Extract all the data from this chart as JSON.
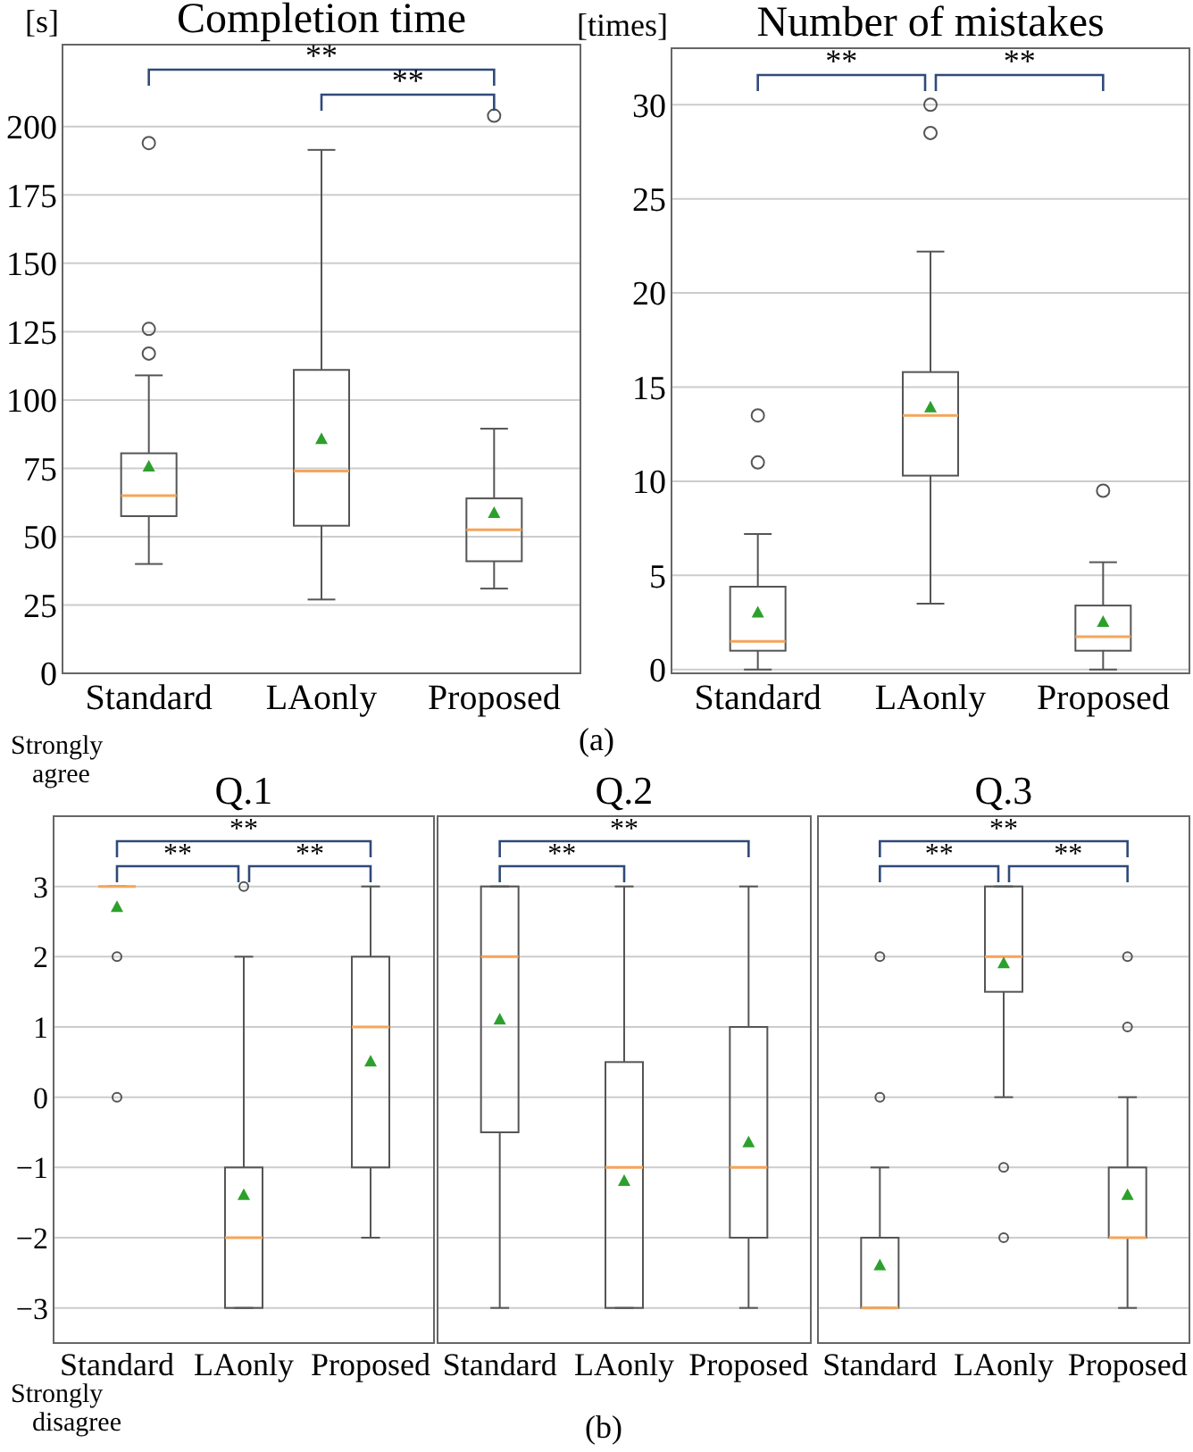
{
  "chart_data": [
    {
      "type": "box",
      "title": "Completion time",
      "ylabel": "[s]",
      "categories": [
        "Standard",
        "LAonly",
        "Proposed"
      ],
      "ylim": [
        0,
        230
      ],
      "yticks": [
        0,
        25,
        50,
        75,
        100,
        125,
        150,
        175,
        200
      ],
      "grid": "y",
      "annotations": [
        "**",
        "**"
      ],
      "boxes": [
        {
          "low": 40,
          "q1": 57.5,
          "median": 65,
          "q3": 80.5,
          "high": 109,
          "mean": 75.5,
          "outliers": [
            117,
            126,
            194
          ]
        },
        {
          "low": 27,
          "q1": 54,
          "median": 74,
          "q3": 111,
          "high": 191.5,
          "mean": 85.5
        },
        {
          "low": 31,
          "q1": 41,
          "median": 52.5,
          "q3": 64,
          "high": 89.5,
          "mean": 58.5,
          "outliers": [
            204
          ]
        }
      ]
    },
    {
      "type": "box",
      "title": "Number of mistakes",
      "ylabel": "[times]",
      "categories": [
        "Standard",
        "LAonly",
        "Proposed"
      ],
      "ylim": [
        -0.2,
        33
      ],
      "yticks": [
        0,
        5,
        10,
        15,
        20,
        25,
        30
      ],
      "grid": "y",
      "annotations": [
        "**",
        "**",
        "(a)"
      ],
      "boxes": [
        {
          "low": 0,
          "q1": 1,
          "median": 1.5,
          "q3": 4.4,
          "high": 7.2,
          "mean": 3,
          "outliers": [
            11,
            13.5
          ]
        },
        {
          "low": 3.5,
          "q1": 10.3,
          "median": 13.5,
          "q3": 15.8,
          "high": 22.2,
          "mean": 13.9,
          "outliers": [
            28.5,
            30
          ]
        },
        {
          "low": 0,
          "q1": 1,
          "median": 1.75,
          "q3": 3.4,
          "high": 5.7,
          "mean": 2.5,
          "outliers": [
            9.5
          ]
        }
      ]
    },
    {
      "type": "box",
      "title": "Q.1",
      "categories": [
        "Standard",
        "LAonly",
        "Proposed"
      ],
      "ylim": [
        -3.5,
        4
      ],
      "yticks": [
        {
          "value": -3,
          "label": "−3"
        },
        {
          "value": -2,
          "label": "−2"
        },
        {
          "value": -1,
          "label": "−1"
        },
        0,
        1,
        2,
        3
      ],
      "grid": "y",
      "annotations": [
        "**",
        "**",
        "**",
        "Strongly agree",
        "Strongly disagree"
      ],
      "boxes": [
        {
          "low": 3,
          "q1": 3,
          "median": 3,
          "q3": 3,
          "high": 3,
          "mean": 2.7,
          "outliers": [
            2,
            0
          ]
        },
        {
          "low": -3,
          "q1": -3,
          "median": -2,
          "q3": -1,
          "high": 2,
          "mean": -1.4,
          "outliers": [
            3
          ]
        },
        {
          "low": -2,
          "q1": -1,
          "median": 1,
          "q3": 2,
          "high": 3,
          "mean": 0.5
        }
      ]
    },
    {
      "type": "box",
      "title": "Q.2",
      "categories": [
        "Standard",
        "LAonly",
        "Proposed"
      ],
      "ylim": [
        -3.5,
        4
      ],
      "yticks": [
        {
          "value": -3,
          "label": null
        },
        {
          "value": -2,
          "label": null
        },
        {
          "value": -1,
          "label": null
        },
        {
          "value": 0,
          "label": null
        },
        {
          "value": 1,
          "label": null
        },
        {
          "value": 2,
          "label": null
        },
        {
          "value": 3,
          "label": null
        }
      ],
      "grid": "y",
      "tick_labels": "x",
      "annotations": [
        "**",
        "**"
      ],
      "boxes": [
        {
          "low": -3,
          "q1": -0.5,
          "median": 2,
          "q3": 3,
          "high": 3,
          "mean": 1.1
        },
        {
          "low": -3,
          "q1": -3,
          "median": -1,
          "q3": 0.5,
          "high": 3,
          "mean": -1.2
        },
        {
          "low": -3,
          "q1": -2,
          "median": -1,
          "q3": 1,
          "high": 3,
          "mean": -0.65
        }
      ]
    },
    {
      "type": "box",
      "title": "Q.3",
      "categories": [
        "Standard",
        "LAonly",
        "Proposed"
      ],
      "ylim": [
        -3.5,
        4
      ],
      "yticks": [
        {
          "value": -3,
          "label": null
        },
        {
          "value": -2,
          "label": null
        },
        {
          "value": -1,
          "label": null
        },
        {
          "value": 0,
          "label": null
        },
        {
          "value": 1,
          "label": null
        },
        {
          "value": 2,
          "label": null
        },
        {
          "value": 3,
          "label": null
        }
      ],
      "grid": "y",
      "tick_labels": "x",
      "annotations": [
        "**",
        "**",
        "**",
        "(b)"
      ],
      "boxes": [
        {
          "low": -3,
          "q1": -3,
          "median": -3,
          "q3": -2,
          "high": -1,
          "mean": -2.4,
          "outliers": [
            0,
            2
          ]
        },
        {
          "low": 0,
          "q1": 1.5,
          "median": 2,
          "q3": 3,
          "high": 3,
          "mean": 1.9,
          "outliers": [
            -1,
            -2
          ]
        },
        {
          "low": -3,
          "q1": -2,
          "median": -2,
          "q3": -1,
          "high": 0,
          "mean": -1.4,
          "outliers": [
            1,
            2
          ]
        }
      ]
    }
  ]
}
